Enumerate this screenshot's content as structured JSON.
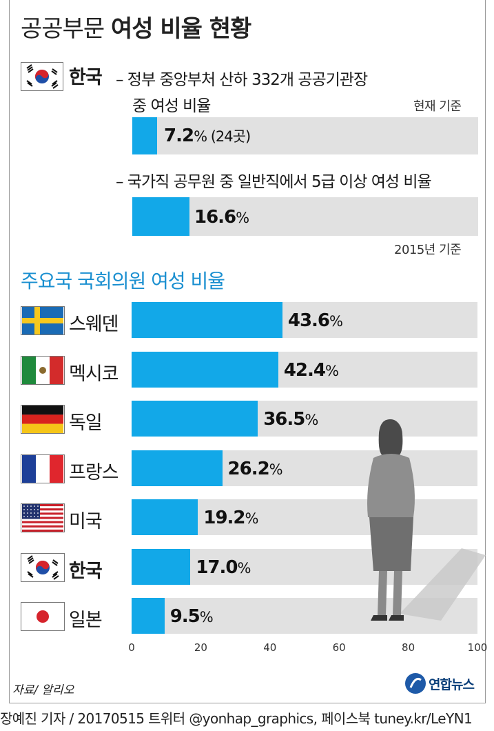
{
  "title": {
    "light": "공공부문",
    "bold": "여성 비율 현황"
  },
  "korea_section": {
    "country": "한국",
    "item1": {
      "desc_line1": "– 정부 중앙부처 산하 332개 공공기관장",
      "desc_line2": "중 여성 비율",
      "note": "현재 기준",
      "value": "7.2",
      "unit": "%",
      "extra": " (24곳)"
    },
    "item2": {
      "desc": "– 국가직 공무원 중 일반직에서 5급 이상 여성 비율",
      "value": "16.6",
      "unit": "%",
      "note": "2015년 기준"
    }
  },
  "section_title": "주요국 국회의원 여성 비율",
  "chart_data": {
    "type": "bar",
    "orientation": "horizontal",
    "title": "주요국 국회의원 여성 비율",
    "categories": [
      "스웨덴",
      "멕시코",
      "독일",
      "프랑스",
      "미국",
      "한국",
      "일본"
    ],
    "values": [
      43.6,
      42.4,
      36.5,
      26.2,
      19.2,
      17.0,
      9.5
    ],
    "value_labels": [
      "43.6",
      "42.4",
      "36.5",
      "26.2",
      "19.2",
      "17.0",
      "9.5"
    ],
    "unit": "%",
    "xlim": [
      0,
      100
    ],
    "xticks": [
      "0",
      "20",
      "40",
      "60",
      "80",
      "100"
    ],
    "highlight": "한국",
    "colors": {
      "bar": "#12a8e8",
      "track": "#e1e1e1",
      "title": "#1a8fd0"
    }
  },
  "source": "자료/ 알리오",
  "logo_text": "연합뉴스",
  "credit": "장예진 기자 / 20170515 트위터 @yonhap_graphics, 페이스북 tuney.kr/LeYN1"
}
